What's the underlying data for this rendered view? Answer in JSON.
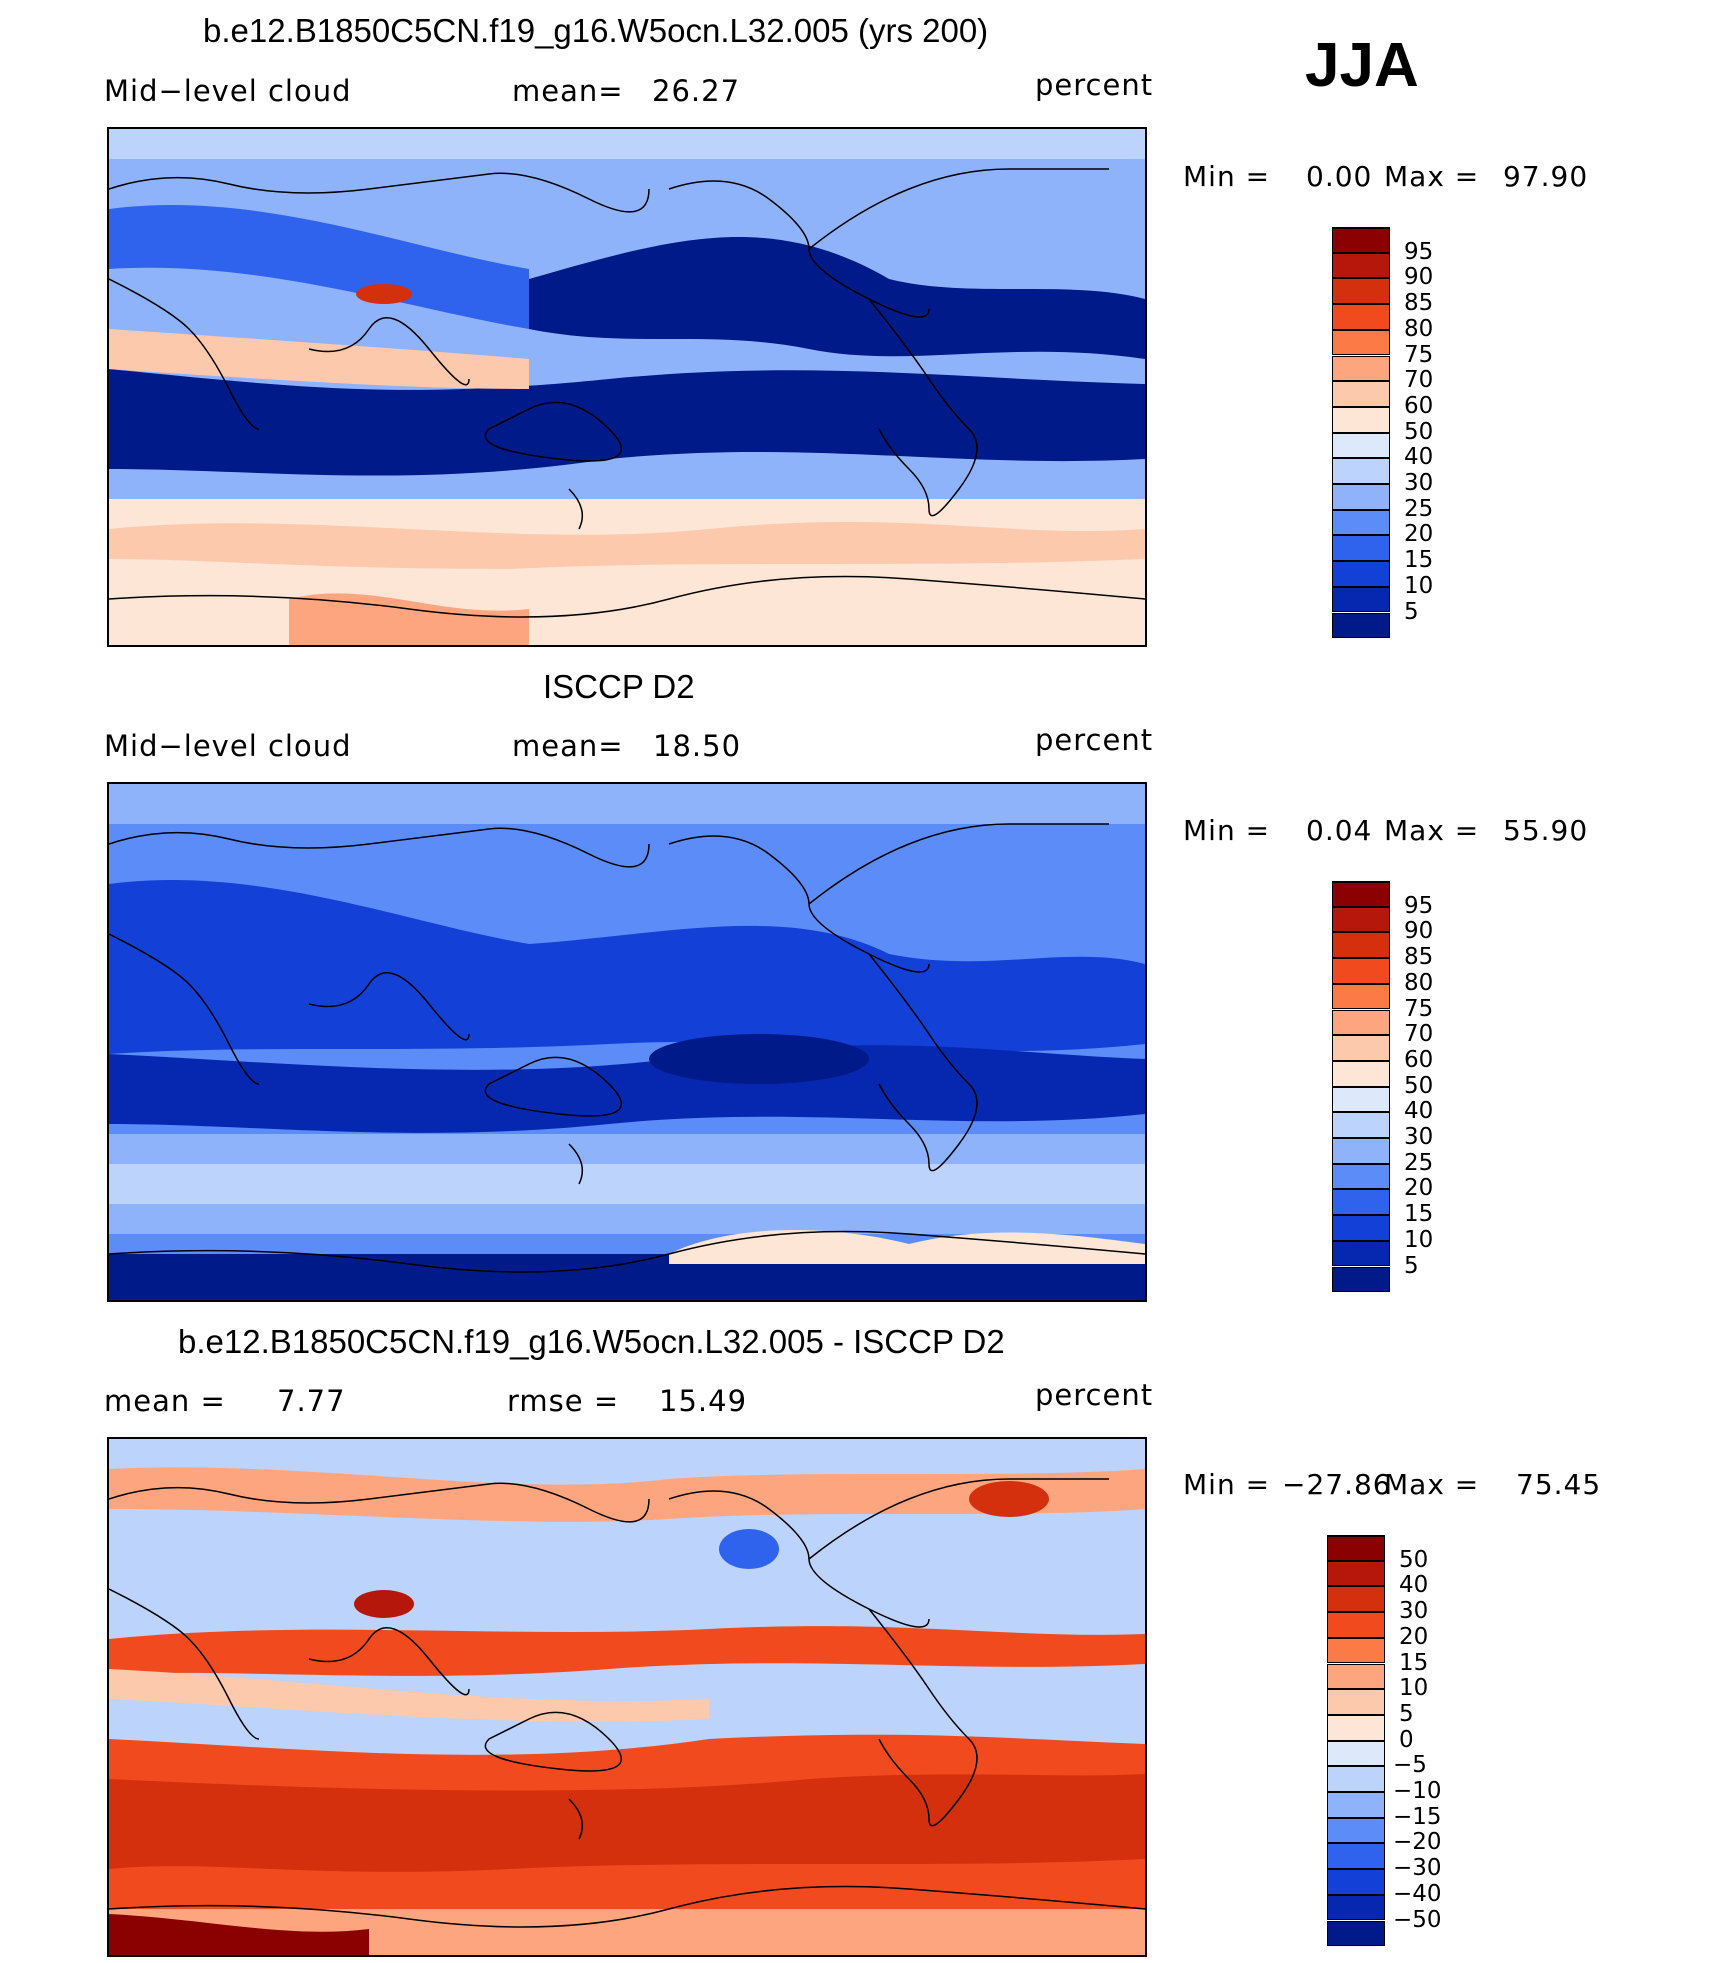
{
  "season": "JJA",
  "panels": [
    {
      "title": "b.e12.B1850C5CN.f19_g16.W5ocn.L32.005 (yrs 200)",
      "left_label": "Mid−level cloud",
      "mid_label": "mean=",
      "mid_value": "26.27",
      "units": "percent",
      "min_label": "Min =",
      "min_value": "0.00",
      "max_label": "Max =",
      "max_value": "97.90",
      "colorbar_labels": [
        "95",
        "90",
        "85",
        "80",
        "75",
        "70",
        "60",
        "50",
        "40",
        "30",
        "25",
        "20",
        "15",
        "10",
        "5"
      ],
      "colorbar_colors": [
        "#8b0000",
        "#b5170a",
        "#d4300e",
        "#f04a1e",
        "#fc7a45",
        "#fda57e",
        "#fcc9ac",
        "#fde6d5",
        "#dde9fb",
        "#bcd3fb",
        "#8fb3fb",
        "#5c8cf7",
        "#2f63ee",
        "#1340d6",
        "#0628b0",
        "#001a8a"
      ]
    },
    {
      "title": "ISCCP D2",
      "left_label": "Mid−level cloud",
      "mid_label": "mean=",
      "mid_value": "18.50",
      "units": "percent",
      "min_label": "Min =",
      "min_value": "0.04",
      "max_label": "Max =",
      "max_value": "55.90",
      "colorbar_labels": [
        "95",
        "90",
        "85",
        "80",
        "75",
        "70",
        "60",
        "50",
        "40",
        "30",
        "25",
        "20",
        "15",
        "10",
        "5"
      ],
      "colorbar_colors": [
        "#8b0000",
        "#b5170a",
        "#d4300e",
        "#f04a1e",
        "#fc7a45",
        "#fda57e",
        "#fcc9ac",
        "#fde6d5",
        "#dde9fb",
        "#bcd3fb",
        "#8fb3fb",
        "#5c8cf7",
        "#2f63ee",
        "#1340d6",
        "#0628b0",
        "#001a8a"
      ]
    },
    {
      "title": "b.e12.B1850C5CN.f19_g16.W5ocn.L32.005 - ISCCP D2",
      "left_label": "mean =",
      "left_value": "7.77",
      "mid_label": "rmse =",
      "mid_value": "15.49",
      "units": "percent",
      "min_label": "Min =",
      "min_value": "−27.86",
      "max_label": "Max =",
      "max_value": "75.45",
      "colorbar_labels": [
        "50",
        "40",
        "30",
        "20",
        "15",
        "10",
        "5",
        "0",
        "−5",
        "−10",
        "−15",
        "−20",
        "−30",
        "−40",
        "−50"
      ],
      "colorbar_colors": [
        "#8b0000",
        "#b5170a",
        "#d4300e",
        "#f04a1e",
        "#fc7a45",
        "#fda57e",
        "#fcc9ac",
        "#fde6d5",
        "#dde9fb",
        "#bcd3fb",
        "#8fb3fb",
        "#5c8cf7",
        "#2f63ee",
        "#1340d6",
        "#0628b0",
        "#001a8a"
      ]
    }
  ]
}
